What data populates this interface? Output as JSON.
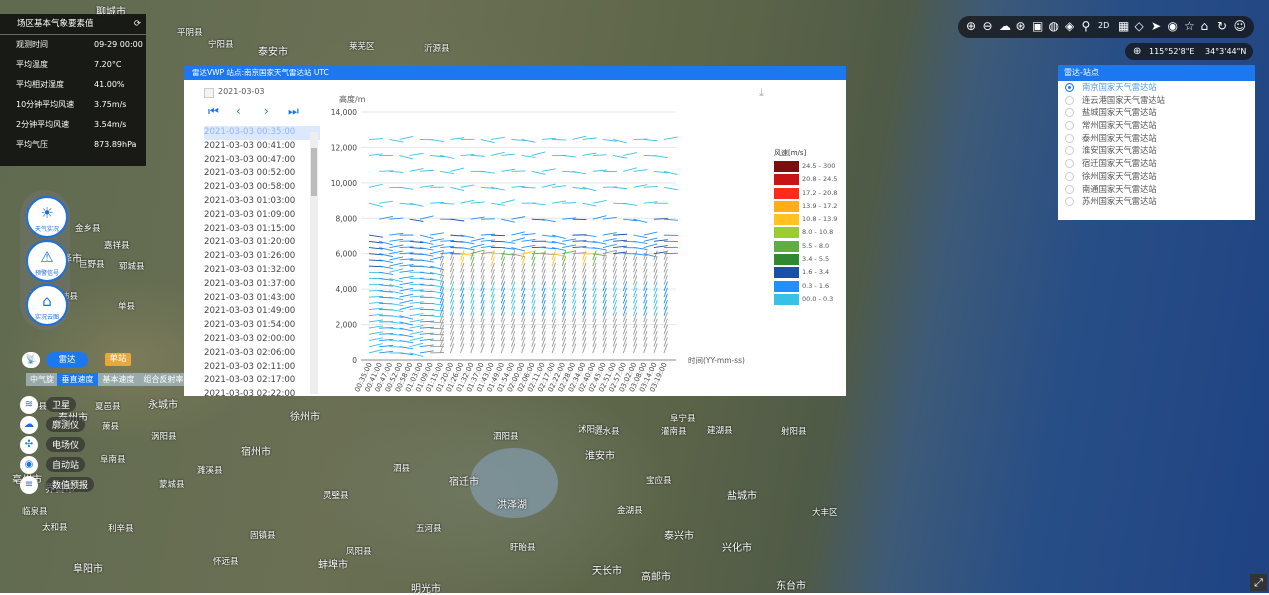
{
  "map_labels": [
    "聊城市",
    "平阴县",
    "泰安市",
    "莱芜区",
    "沂源县",
    "泰州市",
    "宁阳县",
    "枣庄市",
    "徐州市",
    "宿州市",
    "蚌埠市",
    "阜阳市",
    "淮安市",
    "盐城市",
    "泗阳县",
    "沭阳县",
    "宿迁市",
    "灌南县",
    "洪泽湖",
    "建湖县",
    "阜宁县",
    "射阳县",
    "泰兴市",
    "东台市",
    "大丰区",
    "凤阳县",
    "明光市",
    "盱眙县",
    "金湖县",
    "宝应县",
    "天长市",
    "高邮市",
    "兴化市",
    "涟水县",
    "阜南县",
    "临泉县",
    "界首市",
    "太和县",
    "利辛县",
    "涡阳县",
    "蒙城县",
    "濉溪县",
    "萧县",
    "灵璧县",
    "泗县",
    "五河县",
    "固镇县",
    "怀远县",
    "亳州市",
    "单县",
    "鱼台县",
    "丰县",
    "沛县",
    "金乡县",
    "嘉祥县",
    "郓城县",
    "巨野县",
    "菏泽市",
    "曹县",
    "新泰市",
    "平邑县",
    "费县",
    "郯城县",
    "临沭县",
    "赣榆区",
    "东海县",
    "灌云县",
    "响水县",
    "滨海县",
    "永城市",
    "夏邑县"
  ],
  "met": {
    "title": "场区基本气象要素值",
    "refresh_icon": "refresh-icon",
    "rows": [
      {
        "label": "观测时间",
        "value": "09-29 00:00"
      },
      {
        "label": "平均温度",
        "value": "7.20°C"
      },
      {
        "label": "平均相对湿度",
        "value": "41.00%"
      },
      {
        "label": "10分钟平均风速",
        "value": "3.75m/s"
      },
      {
        "label": "2分钟平均风速",
        "value": "3.54m/s"
      },
      {
        "label": "平均气压",
        "value": "873.89hPa"
      }
    ]
  },
  "side_buttons": [
    {
      "label": "天气实况",
      "icon": "sun-icon"
    },
    {
      "label": "预警信号",
      "icon": "alarm-icon"
    },
    {
      "label": "实况云图",
      "icon": "house-icon"
    }
  ],
  "modes": {
    "radar": "雷达",
    "single": "单站"
  },
  "radar_tabs": [
    "中气旋",
    "垂直速度",
    "基本速度",
    "组合反射率"
  ],
  "layers": [
    {
      "label": "卫星",
      "icon": "layers-icon"
    },
    {
      "label": "廓测仪",
      "icon": "cloud-icon"
    },
    {
      "label": "电场仪",
      "icon": "wind-turbine-icon"
    },
    {
      "label": "自动站",
      "icon": "target-icon"
    },
    {
      "label": "数值预报",
      "icon": "stack-icon"
    }
  ],
  "panel": {
    "title": "雷达VWP 站点:南京国家天气雷达站 UTC",
    "date": "2021-03-03",
    "download_icon": "download-icon",
    "times": [
      "2021-03-03 00:35:00",
      "2021-03-03 00:41:00",
      "2021-03-03 00:47:00",
      "2021-03-03 00:52:00",
      "2021-03-03 00:58:00",
      "2021-03-03 01:03:00",
      "2021-03-03 01:09:00",
      "2021-03-03 01:15:00",
      "2021-03-03 01:20:00",
      "2021-03-03 01:26:00",
      "2021-03-03 01:32:00",
      "2021-03-03 01:37:00",
      "2021-03-03 01:43:00",
      "2021-03-03 01:49:00",
      "2021-03-03 01:54:00",
      "2021-03-03 02:00:00",
      "2021-03-03 02:06:00",
      "2021-03-03 02:11:00",
      "2021-03-03 02:17:00",
      "2021-03-03 02:22:00"
    ],
    "selected_time": "2021-03-03 00:35:00"
  },
  "chart_data": {
    "type": "scatter",
    "title": "",
    "ylabel": "高度/m",
    "xlabel": "时间(YY-mm-ss)",
    "ylim": [
      0,
      14000
    ],
    "yticks": [
      "0",
      "2,000",
      "4,000",
      "6,000",
      "8,000",
      "10,000",
      "12,000",
      "14,000"
    ],
    "x": [
      "00:35:00",
      "00:41:00",
      "00:47:00",
      "00:52:00",
      "00:58:00",
      "01:03:00",
      "01:09:00",
      "01:15:00",
      "01:20:00",
      "01:26:00",
      "01:32:00",
      "01:37:00",
      "01:43:00",
      "01:49:00",
      "01:54:00",
      "02:00:00",
      "02:06:00",
      "02:11:00",
      "02:17:00",
      "02:22:00",
      "02:28:00",
      "02:34:00",
      "02:40:00",
      "02:45:00",
      "02:51:00",
      "02:57:00",
      "03:02:00",
      "03:08:00",
      "03:14:00",
      "03:19:00"
    ],
    "legend_title": "风速[m/s]",
    "legend": [
      {
        "label": "24.5 - 300",
        "color": "#7a0f0f"
      },
      {
        "label": "20.8 - 24.5",
        "color": "#c81414"
      },
      {
        "label": "17.2 - 20.8",
        "color": "#ff2b1a"
      },
      {
        "label": "13.9 - 17.2",
        "color": "#ffae17"
      },
      {
        "label": "10.8 - 13.9",
        "color": "#ffc21f"
      },
      {
        "label": "8.0 - 10.8",
        "color": "#9acd32"
      },
      {
        "label": "5.5 - 8.0",
        "color": "#5fae45"
      },
      {
        "label": "3.4 - 5.5",
        "color": "#2f8a2f"
      },
      {
        "label": "1.6 - 3.4",
        "color": "#1b4fa8"
      },
      {
        "label": "0.3 - 1.6",
        "color": "#1e90ff"
      },
      {
        "label": "00.0 - 0.3",
        "color": "#37c1e6"
      }
    ],
    "legend_position": "right"
  },
  "toolbar_icons": [
    "zoom-in-icon",
    "zoom-out-icon",
    "weather-icon",
    "globe-icon",
    "fit-icon",
    "globe-dark-icon",
    "layers-icon",
    "pin-icon",
    "2d-icon",
    "measure-area-icon",
    "ruler-icon",
    "send-icon",
    "eye-icon",
    "star-icon",
    "bookmark-icon",
    "rotate-icon",
    "user-icon"
  ],
  "toolbar_2d": "2D",
  "coords": {
    "lon": "115°52'8\"E",
    "lat": "34°3'44\"N"
  },
  "stations": {
    "title": "雷达-站点",
    "items": [
      "南京国家天气雷达站",
      "连云港国家天气雷达站",
      "盐城国家天气雷达站",
      "常州国家天气雷达站",
      "泰州国家天气雷达站",
      "淮安国家天气雷达站",
      "宿迁国家天气雷达站",
      "徐州国家天气雷达站",
      "南通国家天气雷达站",
      "苏州国家天气雷达站"
    ],
    "selected": 0
  }
}
